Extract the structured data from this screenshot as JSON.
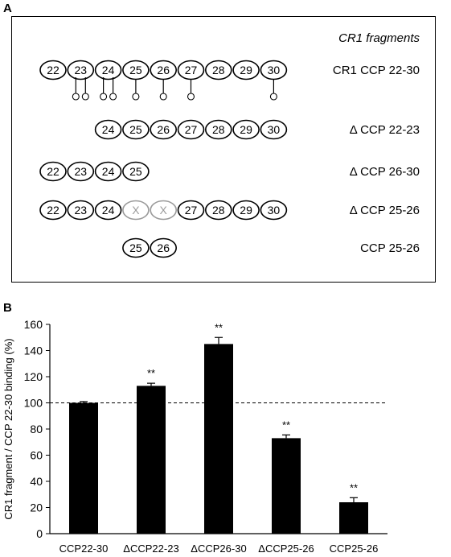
{
  "panel_a": {
    "letter": "A",
    "header": "CR1 fragments",
    "fragments": [
      {
        "label": "CR1 CCP 22-30",
        "domains": [
          "22",
          "23",
          "24",
          "25",
          "26",
          "27",
          "28",
          "29",
          "30"
        ],
        "glycosylation_sites_per_domain": [
          0,
          2,
          2,
          1,
          1,
          1,
          0,
          0,
          1
        ]
      },
      {
        "label": "Δ CCP 22-23",
        "domains": [
          "24",
          "25",
          "26",
          "27",
          "28",
          "29",
          "30"
        ]
      },
      {
        "label": "Δ CCP 26-30",
        "domains": [
          "22",
          "23",
          "24",
          "25"
        ]
      },
      {
        "label": "Δ CCP 25-26",
        "domains": [
          "22",
          "23",
          "24",
          "X",
          "X",
          "27",
          "28",
          "29",
          "30"
        ],
        "deleted_domain_color": "#9a9a9a"
      },
      {
        "label": "CCP 25-26",
        "domains": [
          "25",
          "26"
        ]
      }
    ]
  },
  "panel_b": {
    "letter": "B"
  },
  "chart_data": {
    "type": "bar",
    "categories": [
      "CCP22-30",
      "ΔCCP22-23",
      "ΔCCP26-30",
      "ΔCCP25-26",
      "CCP25-26"
    ],
    "values": [
      100,
      113,
      145,
      73,
      24
    ],
    "errors": [
      1,
      2,
      5,
      2.5,
      3.5
    ],
    "annotations": [
      "",
      "**",
      "**",
      "**",
      "**"
    ],
    "reference_line": 100,
    "ylabel": "CR1 fragment / CCP 22-30 binding (%)",
    "ylim": [
      0,
      160
    ],
    "yticks": [
      "0",
      "20",
      "40",
      "60",
      "80",
      "100",
      "120",
      "140",
      "160"
    ],
    "bar_color": "#000000",
    "grid": false,
    "legend": "none"
  }
}
